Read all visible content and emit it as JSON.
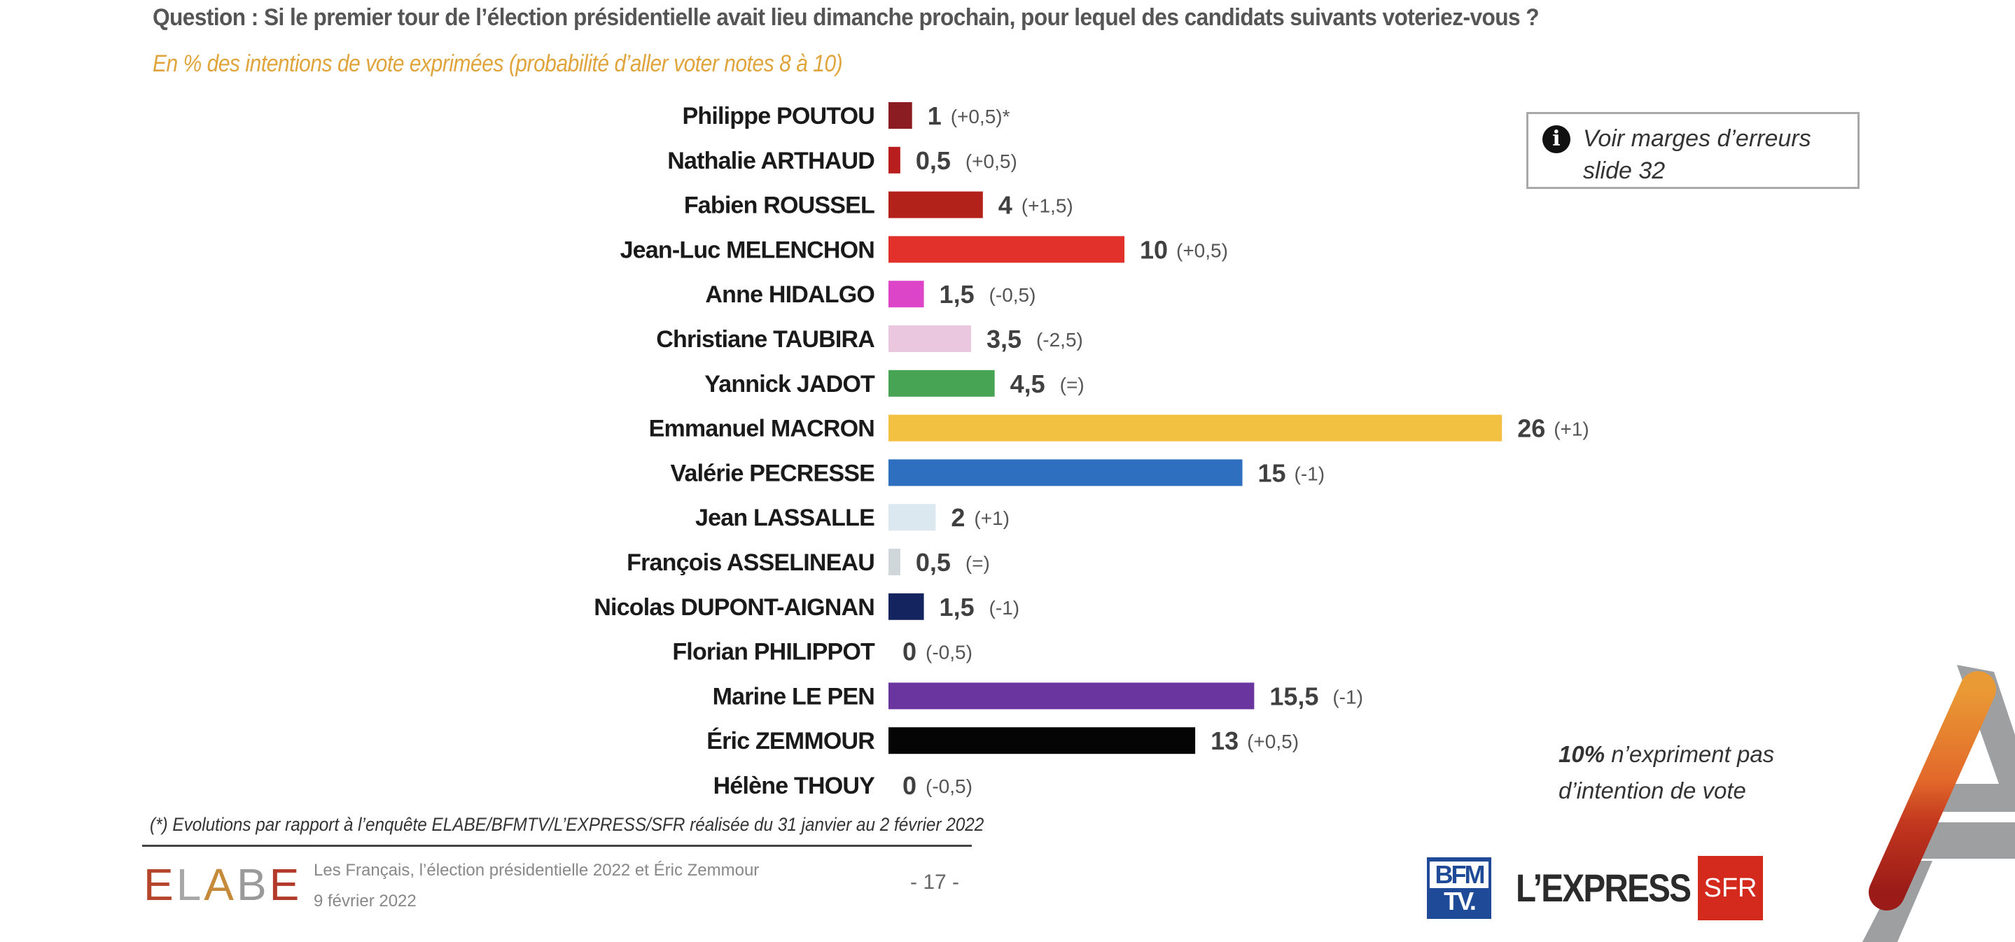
{
  "header": {
    "question": "Question : Si le premier tour de l’élection présidentielle avait lieu dimanche prochain, pour lequel des candidats suivants voteriez-vous ?",
    "subtitle": "En % des intentions de vote exprimées (probabilité d’aller voter notes 8 à 10)"
  },
  "chart_data": {
    "type": "bar",
    "orientation": "horizontal",
    "title": "Question : Si le premier tour de l’élection présidentielle avait lieu dimanche prochain, pour lequel des candidats suivants voteriez-vous ?",
    "subtitle": "En % des intentions de vote exprimées (probabilité d’aller voter notes 8 à 10)",
    "xlabel": "",
    "ylabel": "",
    "xlim": [
      0,
      26
    ],
    "grid": false,
    "categories": [
      "Philippe POUTOU",
      "Nathalie ARTHAUD",
      "Fabien ROUSSEL",
      "Jean-Luc MELENCHON",
      "Anne HIDALGO",
      "Christiane TAUBIRA",
      "Yannick JADOT",
      "Emmanuel MACRON",
      "Valérie PECRESSE",
      "Jean LASSALLE",
      "François ASSELINEAU",
      "Nicolas DUPONT-AIGNAN",
      "Florian PHILIPPOT",
      "Marine LE PEN",
      "Éric ZEMMOUR",
      "Hélène THOUY"
    ],
    "values": [
      1,
      0.5,
      4,
      10,
      1.5,
      3.5,
      4.5,
      26,
      15,
      2,
      0.5,
      1.5,
      0,
      15.5,
      13,
      0
    ],
    "value_labels": [
      "1",
      "0,5",
      "4",
      "10",
      "1,5",
      "3,5",
      "4,5",
      "26",
      "15",
      "2",
      "0,5",
      "1,5",
      "0",
      "15,5",
      "13",
      "0"
    ],
    "changes": [
      "(+0,5)*",
      "(+0,5)",
      "(+1,5)",
      "(+0,5)",
      "(-0,5)",
      "(-2,5)",
      "(=)",
      "(+1)",
      "(-1)",
      "(+1)",
      "(=)",
      "(-1)",
      "(-0,5)",
      "(-1)",
      "(+0,5)",
      "(-0,5)"
    ],
    "colors": [
      "#8b1d22",
      "#b81e1e",
      "#b3211b",
      "#e2312a",
      "#dd45c8",
      "#eac7de",
      "#47a455",
      "#f2c141",
      "#2e6fbf",
      "#dbe8f0",
      "#cfd7da",
      "#14245e",
      "#cccccc",
      "#6b35a0",
      "#050505",
      "#cccccc"
    ]
  },
  "info_box": {
    "icon": "info-icon",
    "icon_glyph": "i",
    "text": "Voir marges d’erreurs slide 32"
  },
  "no_intention": {
    "percent": "10%",
    "text_line1": " n’expriment pas",
    "text_line2": "d’intention de vote"
  },
  "footnote": "(*) Evolutions par rapport à l’enquête ELABE/BFMTV/L’EXPRESS/SFR réalisée du 31 janvier au 2 février 2022",
  "footer": {
    "logo": "ELABE",
    "study_title": "Les Français, l’élection présidentielle 2022 et Éric Zemmour",
    "date": "9 février 2022",
    "page_number": "- 17 -",
    "partners": {
      "bfm_top": "BFM",
      "bfm_bottom": "TV.",
      "express": "L’EXPRESS",
      "sfr": "SFR"
    }
  }
}
